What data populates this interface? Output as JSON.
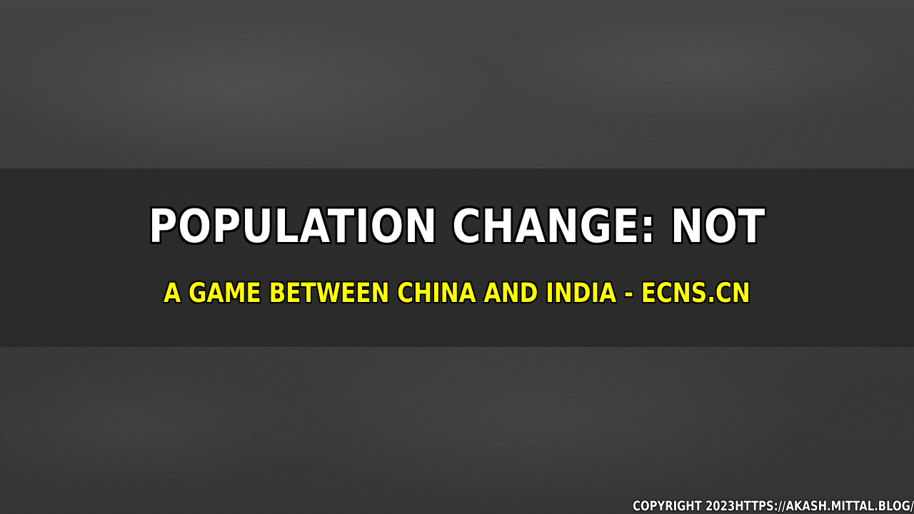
{
  "headline": {
    "line1": "POPULATION CHANGE: NOT",
    "line2": "A GAME BETWEEN CHINA AND INDIA - ECNS.CN"
  },
  "footer": {
    "copyright": "COPYRIGHT 2023HTTPS://AKASH.MITTAL.BLOG/"
  },
  "colors": {
    "background": "#3a3a3a",
    "band": "#262626",
    "title": "#ffffff",
    "subtitle": "#ffff00",
    "outline": "#000000"
  }
}
